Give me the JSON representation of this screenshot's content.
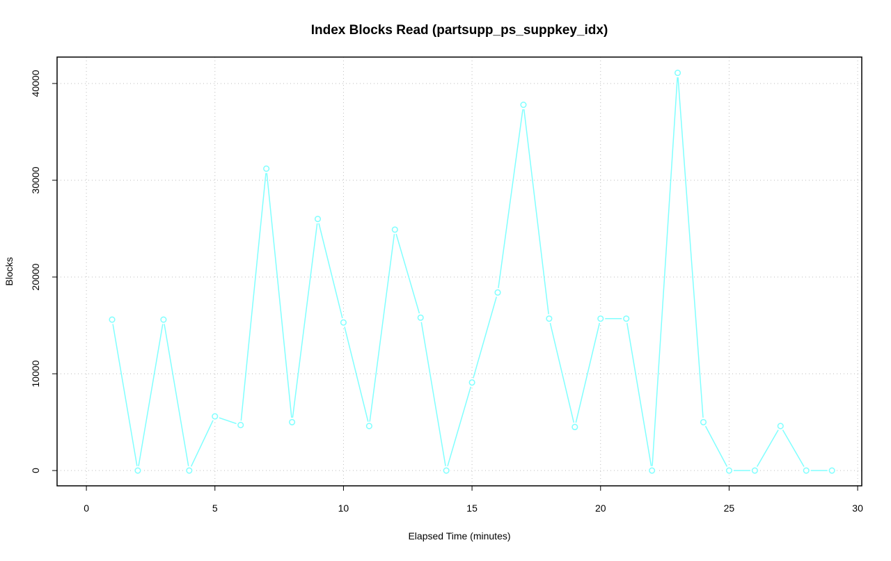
{
  "chart_data": {
    "type": "line",
    "title": "Index Blocks Read (partsupp_ps_suppkey_idx)",
    "x_label": "Elapsed Time (minutes)",
    "y_label": "Blocks",
    "x": [
      1,
      2,
      3,
      4,
      5,
      6,
      7,
      8,
      9,
      10,
      11,
      12,
      13,
      14,
      15,
      16,
      17,
      18,
      19,
      20,
      21,
      22,
      23,
      24,
      25,
      26,
      27,
      28,
      29
    ],
    "series": [
      {
        "name": "partsupp_ps_suppkey_idx",
        "color": "#80ffff",
        "values": [
          15600,
          0,
          15600,
          0,
          5600,
          4700,
          31200,
          5000,
          26000,
          15300,
          4600,
          24900,
          15800,
          0,
          9100,
          18400,
          37800,
          15700,
          4500,
          15700,
          15700,
          0,
          41100,
          5000,
          0,
          0,
          4600,
          0,
          0
        ]
      }
    ],
    "xlim": [
      -1.14,
      30.16
    ],
    "ylim": [
      -1580,
      42730
    ],
    "xticks": [
      0,
      5,
      10,
      15,
      20,
      25,
      30
    ],
    "yticks": [
      0,
      10000,
      20000,
      30000,
      40000
    ],
    "grid": true
  }
}
